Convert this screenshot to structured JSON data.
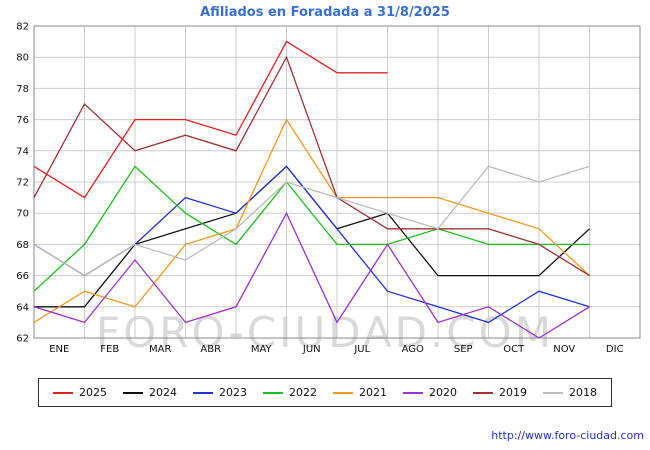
{
  "chart_data": {
    "type": "line",
    "title": "Afiliados en Foradada a 31/8/2025",
    "categories": [
      "ENE",
      "FEB",
      "MAR",
      "ABR",
      "MAY",
      "JUN",
      "JUL",
      "AGO",
      "SEP",
      "OCT",
      "NOV",
      "DIC"
    ],
    "ylim": [
      62,
      82
    ],
    "ytick_step": 2,
    "grid": true,
    "legend_position": "bottom",
    "series": [
      {
        "name": "2025",
        "color": "#dd2222",
        "values": [
          73,
          71,
          76,
          76,
          75,
          81,
          79,
          79,
          null,
          null,
          null,
          null
        ]
      },
      {
        "name": "2024",
        "color": "#111111",
        "values": [
          64,
          64,
          68,
          69,
          70,
          73,
          69,
          70,
          66,
          66,
          66,
          69
        ]
      },
      {
        "name": "2023",
        "color": "#2233cc",
        "values": [
          68,
          66,
          68,
          71,
          70,
          73,
          69,
          65,
          64,
          63,
          65,
          64
        ]
      },
      {
        "name": "2022",
        "color": "#22bb22",
        "values": [
          65,
          68,
          73,
          70,
          68,
          72,
          68,
          68,
          69,
          68,
          68,
          68
        ]
      },
      {
        "name": "2021",
        "color": "#ee9922",
        "values": [
          63,
          65,
          64,
          68,
          69,
          76,
          71,
          71,
          71,
          70,
          69,
          66
        ]
      },
      {
        "name": "2020",
        "color": "#9933cc",
        "values": [
          64,
          63,
          67,
          63,
          64,
          70,
          63,
          68,
          63,
          64,
          62,
          64
        ]
      },
      {
        "name": "2019",
        "color": "#993333",
        "values": [
          71,
          77,
          74,
          75,
          74,
          80,
          71,
          69,
          69,
          69,
          68,
          66
        ]
      },
      {
        "name": "2018",
        "color": "#bbbbbb",
        "values": [
          68,
          66,
          68,
          67,
          69,
          72,
          71,
          70,
          69,
          73,
          72,
          73
        ]
      }
    ]
  },
  "watermark": "FORO-CIUDAD.COM",
  "footer": {
    "url": "http://www.foro-ciudad.com"
  }
}
